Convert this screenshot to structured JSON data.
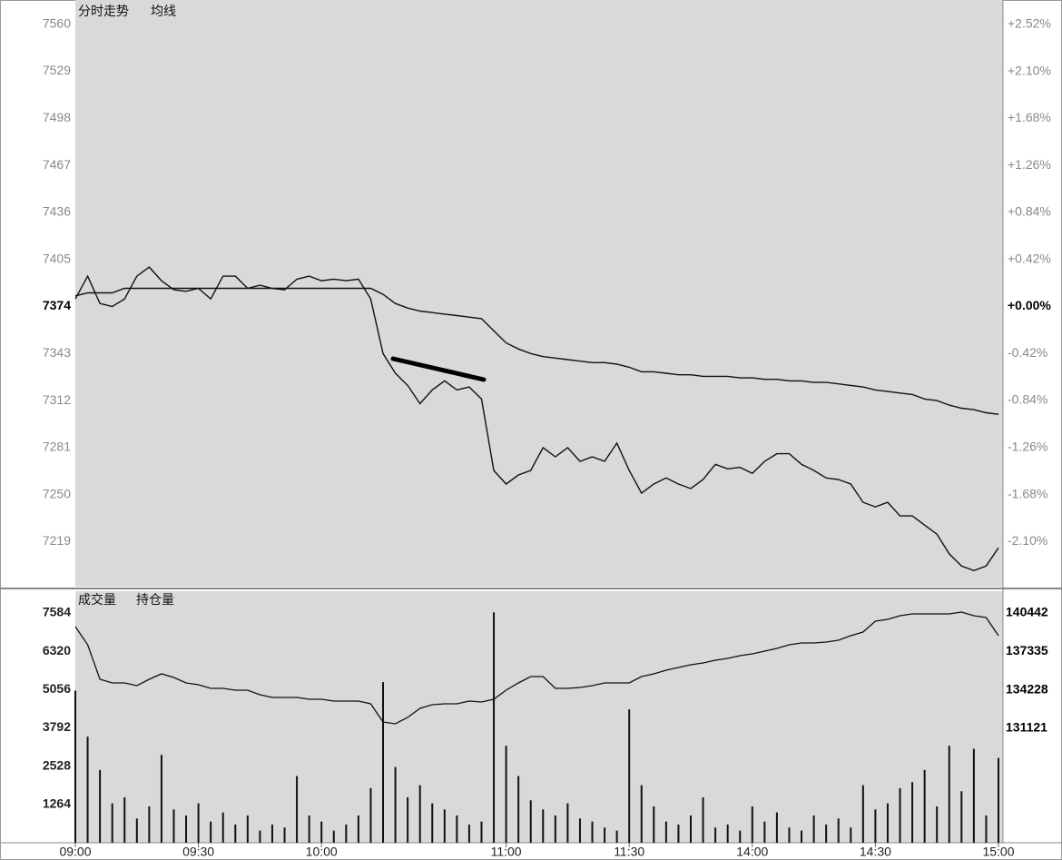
{
  "chart_data": [
    {
      "type": "line",
      "series": [
        {
          "name": "分时走势",
          "color": "#111111",
          "values": [
            7379,
            7394,
            7376,
            7374,
            7379,
            7394,
            7400,
            7391,
            7385,
            7384,
            7386,
            7379,
            7394,
            7394,
            7386,
            7388,
            7386,
            7385,
            7392,
            7394,
            7391,
            7392,
            7391,
            7392,
            7379,
            7343,
            7330,
            7322,
            7310,
            7319,
            7325,
            7319,
            7321,
            7313,
            7266,
            7257,
            7263,
            7266,
            7281,
            7275,
            7281,
            7272,
            7275,
            7272,
            7284,
            7266,
            7251,
            7257,
            7261,
            7257,
            7254,
            7260,
            7270,
            7267,
            7268,
            7264,
            7272,
            7277,
            7277,
            7270,
            7266,
            7261,
            7260,
            7257,
            7245,
            7242,
            7245,
            7236,
            7236,
            7230,
            7224,
            7211,
            7203,
            7200,
            7203,
            7215
          ]
        },
        {
          "name": "均线",
          "color": "#111111",
          "values": [
            7381,
            7383,
            7383,
            7383,
            7386,
            7386,
            7386,
            7386,
            7386,
            7386,
            7386,
            7386,
            7386,
            7386,
            7386,
            7386,
            7386,
            7386,
            7386,
            7386,
            7386,
            7386,
            7386,
            7386,
            7386,
            7382,
            7376,
            7373,
            7371,
            7370,
            7369,
            7368,
            7367,
            7366,
            7358,
            7350,
            7346,
            7343,
            7341,
            7340,
            7339,
            7338,
            7337,
            7337,
            7336,
            7334,
            7331,
            7331,
            7330,
            7329,
            7329,
            7328,
            7328,
            7328,
            7327,
            7327,
            7326,
            7326,
            7325,
            7325,
            7324,
            7324,
            7323,
            7322,
            7321,
            7319,
            7318,
            7317,
            7316,
            7313,
            7312,
            7309,
            7307,
            7306,
            7304,
            7303
          ]
        }
      ],
      "ylim": [
        7190,
        7561
      ],
      "yticks": [
        7560,
        7529,
        7498,
        7467,
        7436,
        7405,
        7374,
        7343,
        7312,
        7281,
        7250,
        7219
      ],
      "y2lim": [
        -2.495,
        2.536
      ],
      "y2ticks": [
        {
          "value": 2.52,
          "label": "+2.52%"
        },
        {
          "value": 2.1,
          "label": "+2.10%"
        },
        {
          "value": 1.68,
          "label": "+1.68%"
        },
        {
          "value": 1.26,
          "label": "+1.26%"
        },
        {
          "value": 0.84,
          "label": "+0.84%"
        },
        {
          "value": 0.42,
          "label": "+0.42%"
        },
        {
          "value": 0,
          "label": "+0.00%"
        },
        {
          "value": -0.42,
          "label": "-0.42%"
        },
        {
          "value": -0.84,
          "label": "-0.84%"
        },
        {
          "value": -1.26,
          "label": "-1.26%"
        },
        {
          "value": -1.68,
          "label": "-1.68%"
        },
        {
          "value": -2.1,
          "label": "-2.10%"
        }
      ]
    },
    {
      "type": "bar",
      "categories": [
        "09:00",
        null,
        null,
        null,
        null,
        null,
        null,
        null,
        null,
        null,
        "09:30",
        null,
        null,
        null,
        null,
        null,
        null,
        null,
        null,
        null,
        "10:00",
        null,
        null,
        null,
        null,
        null,
        null,
        null,
        null,
        null,
        null,
        null,
        null,
        null,
        null,
        "11:00",
        null,
        null,
        null,
        null,
        null,
        null,
        null,
        null,
        null,
        "11:30",
        null,
        null,
        null,
        null,
        null,
        null,
        null,
        null,
        null,
        "14:00",
        null,
        null,
        null,
        null,
        null,
        null,
        null,
        null,
        null,
        "14:30",
        null,
        null,
        null,
        null,
        null,
        null,
        null,
        null,
        null,
        "15:00"
      ],
      "series": [
        {
          "name": "成交量",
          "color": "#111111",
          "values": [
            5020,
            3500,
            2400,
            1300,
            1500,
            800,
            1200,
            2900,
            1100,
            900,
            1300,
            700,
            1000,
            600,
            900,
            400,
            600,
            500,
            2200,
            900,
            700,
            400,
            600,
            900,
            1800,
            5300,
            2500,
            1500,
            1900,
            1300,
            1100,
            900,
            600,
            700,
            7600,
            3200,
            2200,
            1400,
            1100,
            900,
            1300,
            800,
            700,
            500,
            400,
            4400,
            1900,
            1200,
            700,
            600,
            900,
            1500,
            500,
            600,
            400,
            1200,
            700,
            1000,
            500,
            400,
            900,
            600,
            800,
            500,
            1900,
            1100,
            1300,
            1800,
            2000,
            2400,
            1200,
            3200,
            1700,
            3100,
            900,
            2800
          ]
        },
        {
          "name": "持仓量",
          "type": "line",
          "axis": "y2",
          "color": "#111111",
          "values": [
            139340,
            137871,
            135080,
            134786,
            134786,
            134566,
            135080,
            135521,
            135227,
            134786,
            134639,
            134346,
            134346,
            134199,
            134199,
            133831,
            133611,
            133611,
            133611,
            133464,
            133464,
            133317,
            133317,
            133317,
            133097,
            131628,
            131481,
            131995,
            132730,
            133024,
            133097,
            133097,
            133317,
            133244,
            133464,
            134199,
            134786,
            135300,
            135300,
            134346,
            134346,
            134419,
            134566,
            134786,
            134786,
            134786,
            135300,
            135521,
            135815,
            136035,
            136255,
            136402,
            136623,
            136769,
            136990,
            137137,
            137357,
            137577,
            137871,
            138018,
            138018,
            138092,
            138238,
            138606,
            138900,
            139781,
            139928,
            140222,
            140369,
            140369,
            140369,
            140369,
            140515,
            140222,
            140075,
            138606
          ]
        }
      ],
      "ylim": [
        0,
        7730
      ],
      "yticks": [
        1264,
        2528,
        3792,
        5056,
        6320,
        7584
      ],
      "y2lim": [
        121860,
        140810
      ],
      "y2ticks": [
        131121,
        134228,
        137335,
        140442
      ]
    }
  ]
}
